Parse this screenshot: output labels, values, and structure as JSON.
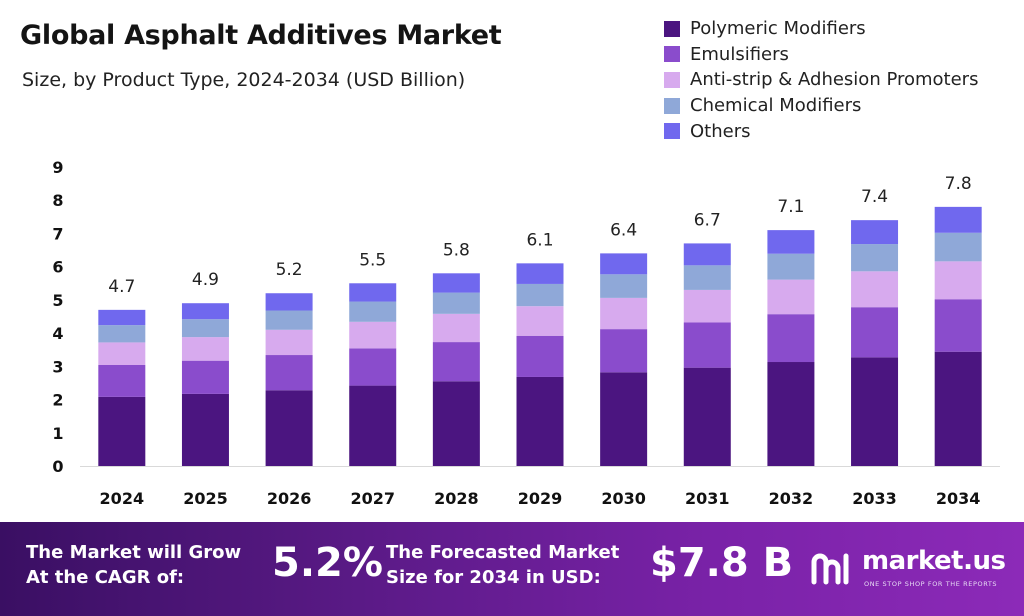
{
  "chart_data": {
    "type": "bar",
    "stacked": true,
    "title": "Global Asphalt Additives Market",
    "subtitle": "Size, by Product Type, 2024-2034 (USD Billion)",
    "categories": [
      "2024",
      "2025",
      "2026",
      "2027",
      "2028",
      "2029",
      "2030",
      "2031",
      "2032",
      "2033",
      "2034"
    ],
    "totals": [
      "4.7",
      "4.9",
      "5.2",
      "5.5",
      "5.8",
      "6.1",
      "6.4",
      "6.7",
      "7.1",
      "7.4",
      "7.8"
    ],
    "series": [
      {
        "name": "Polymeric Modifiers",
        "color": "#4b1580",
        "values": [
          2.08,
          2.17,
          2.28,
          2.42,
          2.55,
          2.68,
          2.82,
          2.96,
          3.13,
          3.27,
          3.44
        ]
      },
      {
        "name": "Emulsifiers",
        "color": "#8a4ccc",
        "values": [
          0.96,
          1.0,
          1.06,
          1.12,
          1.18,
          1.24,
          1.3,
          1.36,
          1.44,
          1.51,
          1.58
        ]
      },
      {
        "name": "Anti-strip & Adhesion Promoters",
        "color": "#d7aaee",
        "values": [
          0.68,
          0.71,
          0.76,
          0.8,
          0.85,
          0.89,
          0.94,
          0.98,
          1.04,
          1.08,
          1.14
        ]
      },
      {
        "name": "Chemical Modifiers",
        "color": "#8fa8d8",
        "values": [
          0.52,
          0.54,
          0.58,
          0.61,
          0.64,
          0.67,
          0.71,
          0.74,
          0.78,
          0.82,
          0.86
        ]
      },
      {
        "name": "Others",
        "color": "#7068ee",
        "values": [
          0.46,
          0.48,
          0.52,
          0.55,
          0.58,
          0.62,
          0.63,
          0.66,
          0.71,
          0.72,
          0.78
        ]
      }
    ],
    "yticks": [
      "0",
      "1",
      "2",
      "3",
      "4",
      "5",
      "6",
      "7",
      "8",
      "9"
    ],
    "ylim": [
      0,
      9
    ],
    "legend_position": "top-right",
    "grid": false
  },
  "banner": {
    "cagr_label_line1": "The Market will Grow",
    "cagr_label_line2": "At the CAGR of:",
    "cagr_value": "5.2%",
    "forecast_label_line1": "The Forecasted Market",
    "forecast_label_line2": "Size for 2034 in USD:",
    "forecast_value": "$7.8 B",
    "logo_text": "market.us",
    "logo_tagline": "ONE STOP SHOP FOR THE REPORTS"
  }
}
